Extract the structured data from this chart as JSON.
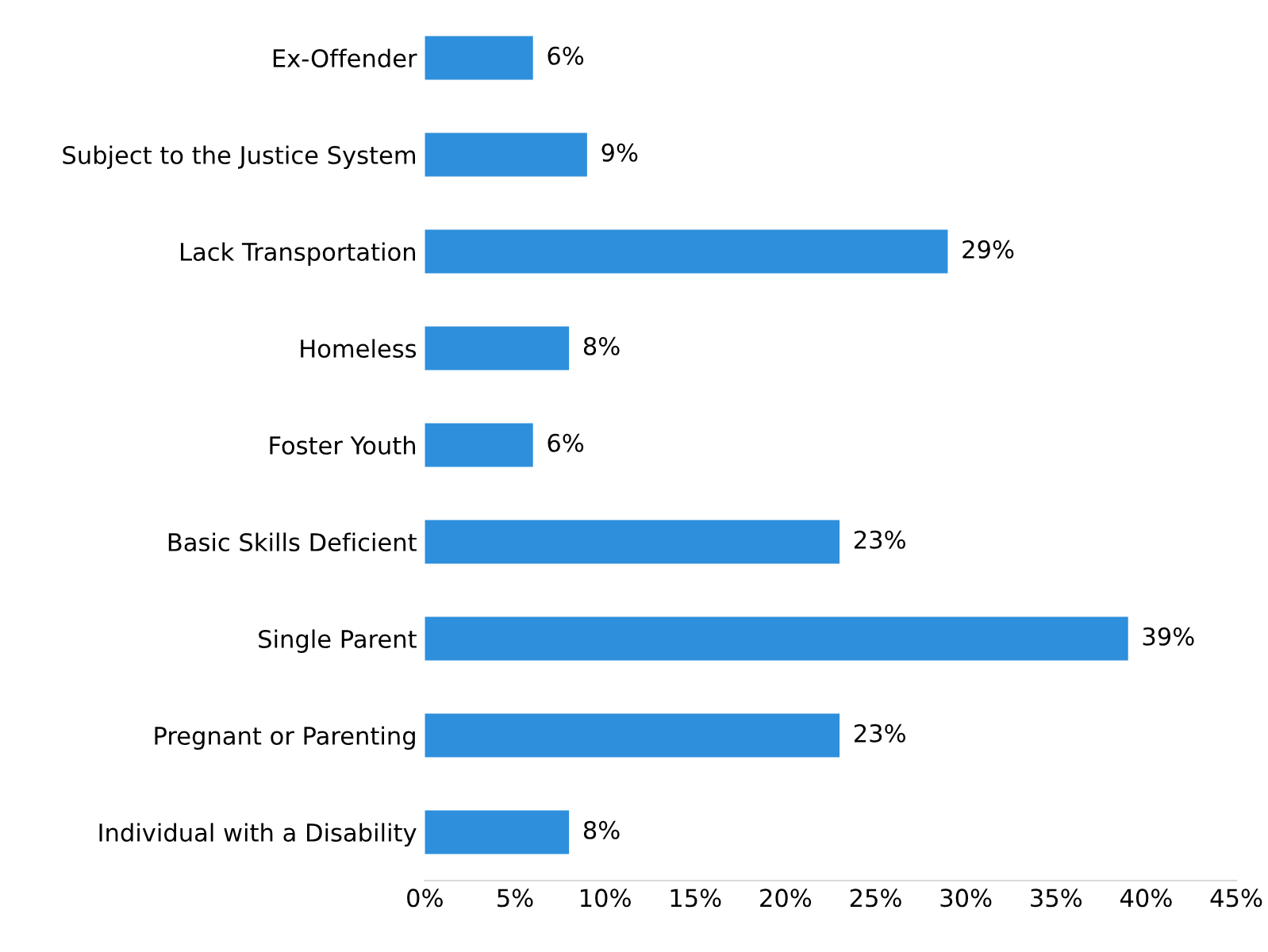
{
  "chart_data": {
    "type": "bar",
    "orientation": "horizontal",
    "categories": [
      "Ex-Offender",
      "Subject to the Justice System",
      "Lack Transportation",
      "Homeless",
      "Foster Youth",
      "Basic Skills Deficient",
      "Single Parent",
      "Pregnant or Parenting",
      "Individual with a Disability"
    ],
    "values": [
      6,
      9,
      29,
      8,
      6,
      23,
      39,
      23,
      8
    ],
    "value_labels": [
      "6%",
      "9%",
      "29%",
      "8%",
      "6%",
      "23%",
      "39%",
      "23%",
      "8%"
    ],
    "color": "#2e8fdc",
    "xlim": [
      0,
      45
    ],
    "xticks": [
      {
        "value": 0,
        "label": "0%"
      },
      {
        "value": 5,
        "label": "5%"
      },
      {
        "value": 10,
        "label": "10%"
      },
      {
        "value": 15,
        "label": "15%"
      },
      {
        "value": 20,
        "label": "20%"
      },
      {
        "value": 25,
        "label": "25%"
      },
      {
        "value": 30,
        "label": "30%"
      },
      {
        "value": 35,
        "label": "35%"
      },
      {
        "value": 40,
        "label": "40%"
      },
      {
        "value": 45,
        "label": "45%"
      }
    ],
    "grid": false,
    "legend": false
  }
}
